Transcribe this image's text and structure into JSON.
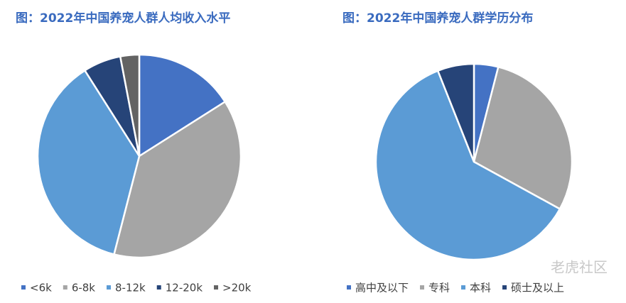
{
  "chart_data": [
    {
      "type": "pie",
      "title": "图：2022年中国养宠人群人均收入水平",
      "categories": [
        "<6k",
        "6-8k",
        "8-12k",
        "12-20k",
        ">20k"
      ],
      "values": [
        16,
        38,
        37,
        6,
        3
      ],
      "colors": [
        "#4472c4",
        "#a5a5a5",
        "#5b9bd5",
        "#264478",
        "#636363"
      ]
    },
    {
      "type": "pie",
      "title": "图：2022年中国养宠人群学历分布",
      "categories": [
        "高中及以下",
        "专科",
        "本科",
        "硕士及以上"
      ],
      "values": [
        4,
        29,
        61,
        6
      ],
      "colors": [
        "#4472c4",
        "#a5a5a5",
        "#5b9bd5",
        "#264478"
      ]
    }
  ],
  "watermark": "老虎社区"
}
